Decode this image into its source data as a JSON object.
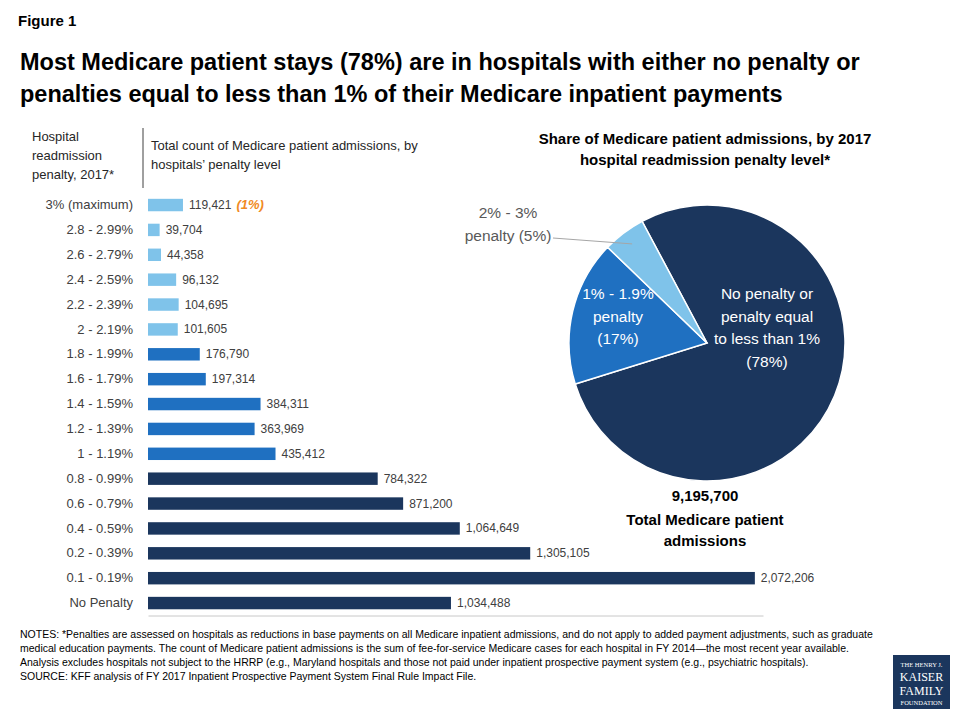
{
  "figure_label": "Figure 1",
  "title": "Most Medicare patient stays (78%) are in hospitals with either no penalty or penalties equal to less than 1% of their Medicare inpatient payments",
  "chart_data": [
    {
      "type": "bar",
      "orientation": "horizontal",
      "category_axis_title": "Hospital readmission penalty, 2017*",
      "value_axis_title": "Total count of Medicare patient admissions, by hospitals’ penalty level",
      "categories": [
        "3% (maximum)",
        "2.8 - 2.99%",
        "2.6 - 2.79%",
        "2.4 - 2.59%",
        "2.2 - 2.39%",
        "2 - 2.19%",
        "1.8 - 1.99%",
        "1.6 - 1.79%",
        "1.4 - 1.59%",
        "1.2 - 1.39%",
        "1 - 1.19%",
        "0.8 - 0.99%",
        "0.6 - 0.79%",
        "0.4 - 0.59%",
        "0.2 - 0.39%",
        "0.1 - 0.19%",
        "No Penalty"
      ],
      "values": [
        119421,
        39704,
        44358,
        96132,
        104695,
        101605,
        176790,
        197314,
        384311,
        363969,
        435412,
        784322,
        871200,
        1064649,
        1305105,
        2072206,
        1034488
      ],
      "value_labels": [
        "119,421",
        "39,704",
        "44,358",
        "96,132",
        "104,695",
        "101,605",
        "176,790",
        "197,314",
        "384,311",
        "363,969",
        "435,412",
        "784,322",
        "871,200",
        "1,064,649",
        "1,305,105",
        "2,072,206",
        "1,034,488"
      ],
      "colors": [
        "#7fc3ea",
        "#7fc3ea",
        "#7fc3ea",
        "#7fc3ea",
        "#7fc3ea",
        "#7fc3ea",
        "#1f70c1",
        "#1f70c1",
        "#1f70c1",
        "#1f70c1",
        "#1f70c1",
        "#1b365d",
        "#1b365d",
        "#1b365d",
        "#1b365d",
        "#1b365d",
        "#1b365d"
      ],
      "data_labels": true,
      "tick_labels": "y",
      "xlim": [
        0,
        2100000
      ],
      "xticks": [],
      "annotation": "(1%)"
    },
    {
      "type": "pie",
      "title": "Share of Medicare patient admissions, by 2017 hospital readmission penalty level*",
      "categories": [
        "No penalty or penalty equal to less than 1%",
        "1% - 1.9% penalty",
        "2% - 3% penalty"
      ],
      "values": [
        78,
        17,
        5
      ],
      "value_labels": [
        "(78%)",
        "(17%)",
        "(5%)"
      ],
      "colors": [
        "#1b365d",
        "#1f70c1",
        "#7fc3ea"
      ],
      "data_labels": true,
      "total": {
        "value": 9195700,
        "label": "9,195,700"
      },
      "total_label": "Total Medicare patient admissions"
    }
  ],
  "notes": "NOTES: *Penalties are assessed on hospitals as reductions in base payments on all Medicare inpatient admissions, and do not apply to added payment adjustments, such as graduate medical education payments. The count of Medicare patient admissions is the sum of fee-for-service Medicare cases for each hospital in FY 2014—the most recent year available.  Analysis excludes hospitals not subject to the HRRP (e.g., Maryland hospitals and those not paid under inpatient prospective payment system (e.g., psychiatric hospitals).",
  "source": "SOURCE: KFF analysis of FY 2017 Inpatient Prospective Payment System Final Rule Impact File.",
  "logo": [
    "THE HENRY J.",
    "KAISER",
    "FAMILY",
    "FOUNDATION"
  ]
}
